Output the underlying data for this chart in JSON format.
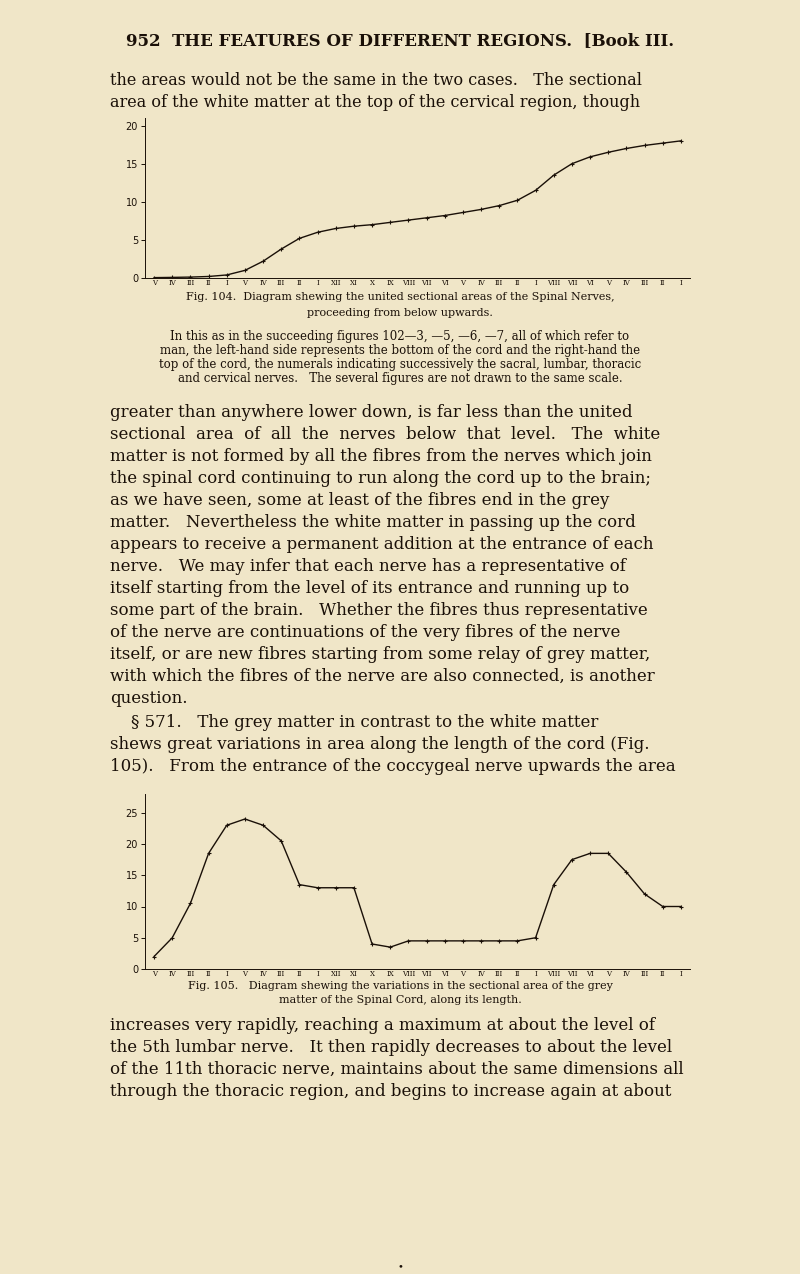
{
  "bg_color": "#f0e6c8",
  "text_color": "#1a1008",
  "page_title": "952  THE FEATURES OF DIFFERENT REGIONS.  [Book III.",
  "intro_lines": [
    "the areas would not be the same in the two cases.   The sectional",
    "area of the white matter at the top of the cervical region, though"
  ],
  "fig104_cap1": "Fig. 104.  Diagram shewing the united sectional areas of the Spinal Nerves,",
  "fig104_cap2": "proceeding from below upwards.",
  "fig104_note": [
    "In this as in the succeeding figures 102—3, —5, —6, —7, all of which refer to",
    "man, the left-hand side represents the bottom of the cord and the right-hand the",
    "top of the cord, the numerals indicating successively the sacral, lumbar, thoracic",
    "and cervical nerves.   The several figures are not drawn to the same scale."
  ],
  "body_text": [
    "greater than anywhere lower down, is far less than the united",
    "sectional  area  of  all  the  nerves  below  that  level.   The  white",
    "matter is not formed by all the fibres from the nerves which join",
    "the spinal cord continuing to run along the cord up to the brain;",
    "as we have seen, some at least of the fibres end in the grey",
    "matter.   Nevertheless the white matter in passing up the cord",
    "appears to receive a permanent addition at the entrance of each",
    "nerve.   We may infer that each nerve has a representative of",
    "itself starting from the level of its entrance and running up to",
    "some part of the brain.   Whether the fibres thus representative",
    "of the nerve are continuations of the very fibres of the nerve",
    "itself, or are new fibres starting from some relay of grey matter,",
    "with which the fibres of the nerve are also connected, is another",
    "question."
  ],
  "sect571_lines": [
    "    § 571.   The grey matter in contrast to the white matter",
    "shews great variations in area along the length of the cord (Fig.",
    "105).   From the entrance of the coccygeal nerve upwards the area"
  ],
  "fig105_cap1": "Fig. 105.   Diagram shewing the variations in the sectional area of the grey",
  "fig105_cap2": "matter of the Spinal Cord, along its length.",
  "bottom_text": [
    "increases very rapidly, reaching a maximum at about the level of",
    "the 5th lumbar nerve.   It then rapidly decreases to about the level",
    "of the 11th thoracic nerve, maintains about the same dimensions all",
    "through the thoracic region, and begins to increase again at about"
  ],
  "x_labels": [
    "V",
    "IV",
    "III",
    "II",
    "I",
    "V",
    "IV",
    "III",
    "II",
    "I",
    "XII",
    "XI",
    "X",
    "IX",
    "VIII",
    "VII",
    "VI",
    "V",
    "IV",
    "III",
    "II",
    "I",
    "VIII",
    "VII",
    "VI",
    "V",
    "IV",
    "III",
    "II",
    "I"
  ],
  "fig104_yticks": [
    0,
    5,
    10,
    15,
    20
  ],
  "fig104_ylim": [
    0,
    21
  ],
  "fig104_y": [
    0.05,
    0.08,
    0.12,
    0.2,
    0.4,
    1.0,
    2.2,
    3.8,
    5.2,
    6.0,
    6.5,
    6.8,
    7.0,
    7.3,
    7.6,
    7.9,
    8.2,
    8.6,
    9.0,
    9.5,
    10.2,
    11.5,
    13.5,
    15.0,
    15.9,
    16.5,
    17.0,
    17.4,
    17.7,
    18.0
  ],
  "fig105_yticks": [
    0,
    5,
    10,
    15,
    20,
    25
  ],
  "fig105_ylim": [
    0,
    28
  ],
  "fig105_y": [
    2.0,
    5.0,
    10.5,
    18.5,
    23.0,
    24.0,
    23.0,
    20.5,
    13.5,
    13.0,
    13.0,
    13.0,
    4.0,
    3.5,
    4.5,
    4.5,
    4.5,
    4.5,
    4.5,
    4.5,
    4.5,
    5.0,
    13.5,
    17.5,
    18.5,
    18.5,
    15.5,
    12.0,
    10.0,
    10.0
  ]
}
